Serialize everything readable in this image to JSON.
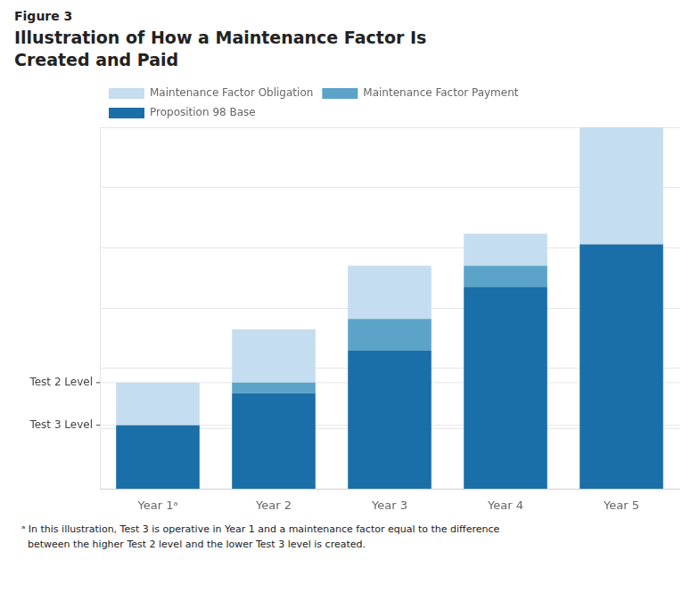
{
  "chart_data": {
    "type": "bar",
    "figure_label": "Figure 3",
    "title": "Illustration of How a Maintenance Factor Is\nCreated and Paid",
    "categories": [
      "Year 1ᵃ",
      "Year 2",
      "Year 3",
      "Year 4",
      "Year 5"
    ],
    "series": [
      {
        "name": "Proposition 98 Base",
        "color": "#1a6fa8",
        "values": [
          3.0,
          4.5,
          6.5,
          9.5,
          11.5
        ]
      },
      {
        "name": "Maintenance Factor Payment",
        "color": "#5ba3c9",
        "values": [
          0.0,
          0.5,
          1.5,
          1.0,
          0.0
        ]
      },
      {
        "name": "Maintenance Factor Obligation",
        "color": "#c5ddf0",
        "values": [
          2.0,
          2.5,
          2.5,
          1.5,
          5.5
        ]
      }
    ],
    "stacked": true,
    "ylim": [
      0,
      17
    ],
    "yticks": [
      0,
      2.8333333333333335,
      5.666666666666667,
      8.5,
      11.333333333333334,
      14.166666666666668,
      17
    ],
    "grid": true,
    "tick_labels": "x",
    "legend": "upper left",
    "annotations": [
      {
        "text": "Test 2 Level",
        "y": 5.0
      },
      {
        "text": "Test 3 Level",
        "y": 3.0
      }
    ],
    "footnote": "ᵃ In this illustration, Test 3 is operative in Year 1 and a maintenance factor equal to the difference\n  between the higher Test 2 level and the lower Test 3 level is created."
  }
}
